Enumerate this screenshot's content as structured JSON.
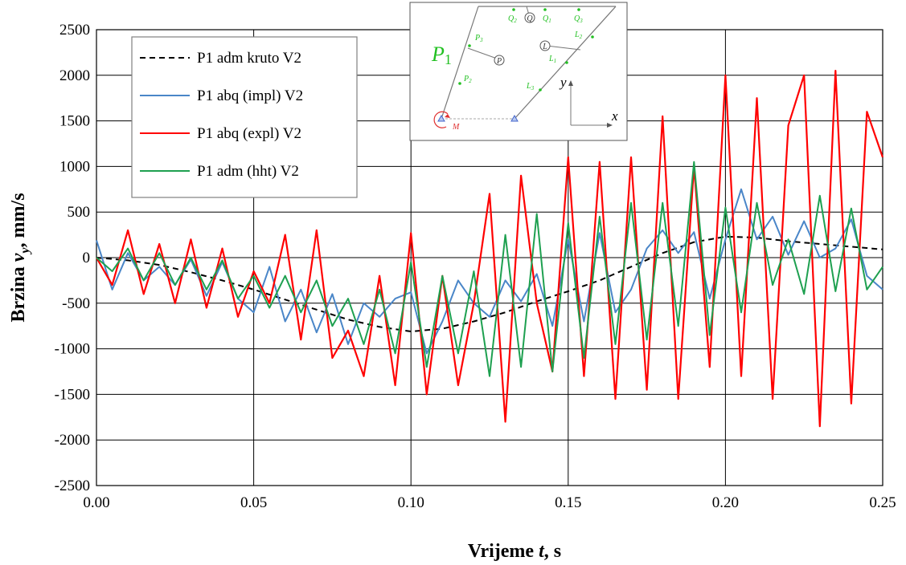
{
  "chart_data": {
    "type": "line",
    "title": "",
    "xlabel": "Vrijeme t, s",
    "xlabel_parts": [
      "Vrijeme ",
      "t",
      ", s"
    ],
    "ylabel": "Brzina v_y, mm/s",
    "ylabel_parts": [
      "Brzina ",
      "v",
      "y",
      ", mm/s"
    ],
    "xlim": [
      0,
      0.25
    ],
    "ylim": [
      -2500,
      2500
    ],
    "x_ticks": [
      0,
      0.05,
      0.1,
      0.15,
      0.2,
      0.25
    ],
    "x_tick_labels": [
      "0.00",
      "0.05",
      "0.10",
      "0.15",
      "0.20",
      "0.25"
    ],
    "y_ticks": [
      -2500,
      -2000,
      -1500,
      -1000,
      -500,
      0,
      500,
      1000,
      1500,
      2000,
      2500
    ],
    "y_tick_labels": [
      "-2500",
      "-2000",
      "-1500",
      "-1000",
      "-500",
      "0",
      "500",
      "1000",
      "1500",
      "2000",
      "2500"
    ],
    "grid": true,
    "legend_position": "top-left",
    "series": [
      {
        "name": "P1 adm kruto V2",
        "color": "#000000",
        "dash": "dashed",
        "x": [
          0,
          0.01,
          0.02,
          0.03,
          0.04,
          0.05,
          0.06,
          0.07,
          0.08,
          0.09,
          0.1,
          0.11,
          0.12,
          0.13,
          0.14,
          0.15,
          0.16,
          0.17,
          0.18,
          0.19,
          0.2,
          0.21,
          0.22,
          0.23,
          0.24,
          0.25
        ],
        "values": [
          0,
          -30,
          -80,
          -160,
          -250,
          -350,
          -460,
          -570,
          -680,
          -760,
          -810,
          -780,
          -700,
          -600,
          -480,
          -370,
          -250,
          -100,
          50,
          170,
          230,
          220,
          180,
          150,
          120,
          90
        ]
      },
      {
        "name": "P1 abq (impl) V2",
        "color": "#4a86c8",
        "dash": "solid",
        "x": [
          0,
          0.005,
          0.01,
          0.015,
          0.02,
          0.025,
          0.03,
          0.035,
          0.04,
          0.045,
          0.05,
          0.055,
          0.06,
          0.065,
          0.07,
          0.075,
          0.08,
          0.085,
          0.09,
          0.095,
          0.1,
          0.105,
          0.11,
          0.115,
          0.12,
          0.125,
          0.13,
          0.135,
          0.14,
          0.145,
          0.15,
          0.155,
          0.16,
          0.165,
          0.17,
          0.175,
          0.18,
          0.185,
          0.19,
          0.195,
          0.2,
          0.205,
          0.21,
          0.215,
          0.22,
          0.225,
          0.23,
          0.235,
          0.24,
          0.245,
          0.25
        ],
        "values": [
          190,
          -350,
          50,
          -250,
          -100,
          -300,
          -20,
          -420,
          -50,
          -450,
          -600,
          -100,
          -700,
          -350,
          -820,
          -400,
          -950,
          -500,
          -650,
          -450,
          -380,
          -1050,
          -700,
          -250,
          -500,
          -650,
          -250,
          -480,
          -180,
          -750,
          200,
          -700,
          270,
          -600,
          -350,
          100,
          300,
          50,
          280,
          -450,
          200,
          750,
          200,
          450,
          30,
          400,
          0,
          100,
          420,
          -200,
          -350
        ]
      },
      {
        "name": "P1 abq (expl) V2",
        "color": "#ff0000",
        "dash": "solid",
        "x": [
          0,
          0.005,
          0.01,
          0.015,
          0.02,
          0.025,
          0.03,
          0.035,
          0.04,
          0.045,
          0.05,
          0.055,
          0.06,
          0.065,
          0.07,
          0.075,
          0.08,
          0.085,
          0.09,
          0.095,
          0.1,
          0.105,
          0.11,
          0.115,
          0.12,
          0.125,
          0.13,
          0.135,
          0.14,
          0.145,
          0.15,
          0.155,
          0.16,
          0.165,
          0.17,
          0.175,
          0.18,
          0.185,
          0.19,
          0.195,
          0.2,
          0.205,
          0.21,
          0.215,
          0.22,
          0.225,
          0.23,
          0.235,
          0.24,
          0.245,
          0.25
        ],
        "values": [
          0,
          -300,
          300,
          -400,
          150,
          -500,
          200,
          -550,
          100,
          -650,
          -150,
          -500,
          250,
          -900,
          300,
          -1100,
          -800,
          -1300,
          -200,
          -1400,
          270,
          -1500,
          -200,
          -1400,
          -500,
          700,
          -1800,
          900,
          -500,
          -1250,
          1100,
          -1300,
          1050,
          -1550,
          1100,
          -1450,
          1550,
          -1550,
          1000,
          -1200,
          2000,
          -1300,
          1750,
          -1550,
          1450,
          2000,
          -1850,
          2050,
          -1600,
          1600,
          1100
        ]
      },
      {
        "name": "P1 adm (hht) V2",
        "color": "#1ea050",
        "dash": "solid",
        "x": [
          0,
          0.005,
          0.01,
          0.015,
          0.02,
          0.025,
          0.03,
          0.035,
          0.04,
          0.045,
          0.05,
          0.055,
          0.06,
          0.065,
          0.07,
          0.075,
          0.08,
          0.085,
          0.09,
          0.095,
          0.1,
          0.105,
          0.11,
          0.115,
          0.12,
          0.125,
          0.13,
          0.135,
          0.14,
          0.145,
          0.15,
          0.155,
          0.16,
          0.165,
          0.17,
          0.175,
          0.18,
          0.185,
          0.19,
          0.195,
          0.2,
          0.205,
          0.21,
          0.215,
          0.22,
          0.225,
          0.23,
          0.235,
          0.24,
          0.245,
          0.25
        ],
        "values": [
          0,
          -150,
          100,
          -250,
          50,
          -300,
          0,
          -350,
          -30,
          -450,
          -200,
          -550,
          -200,
          -600,
          -250,
          -750,
          -450,
          -950,
          -350,
          -1050,
          -50,
          -1200,
          -200,
          -1050,
          -150,
          -1300,
          250,
          -1200,
          480,
          -1250,
          380,
          -1100,
          450,
          -950,
          600,
          -900,
          600,
          -750,
          1050,
          -850,
          550,
          -600,
          600,
          -300,
          200,
          -400,
          680,
          -370,
          540,
          -350,
          -100
        ]
      }
    ]
  },
  "inset": {
    "labels": {
      "P1_main": "P",
      "P1_sub": "1",
      "P3": "P",
      "P3_sub": "3",
      "P2": "P",
      "P2_sub": "2",
      "P_circle": "P",
      "Q2": "Q",
      "Q2_sub": "2",
      "Q_circle": "Q",
      "Q1": "Q",
      "Q1_sub": "1",
      "Q3": "Q",
      "Q3_sub": "3",
      "L_circle": "L",
      "L2": "L",
      "L2_sub": "2",
      "L1": "L",
      "L1_sub": "1",
      "L3": "L",
      "L3_sub": "3",
      "M": "M",
      "x_axis": "x",
      "y_axis": "y"
    }
  }
}
